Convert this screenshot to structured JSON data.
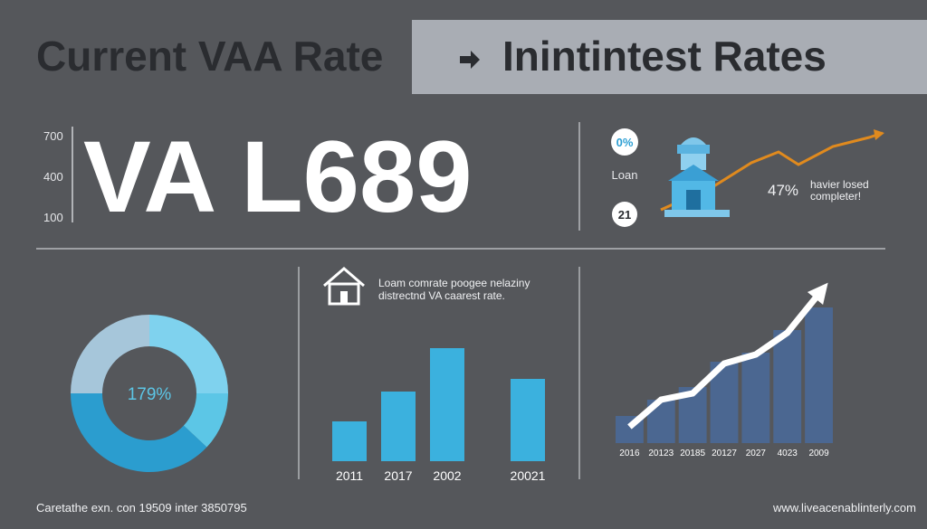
{
  "header": {
    "title_left": "Current VAA Rate",
    "title_right": "Inintintest Rates"
  },
  "hero": {
    "headline": "VA L689",
    "axis_labels": [
      "700",
      "400",
      "100"
    ]
  },
  "loan_panel": {
    "badge_top": "0%",
    "caption": "Loan",
    "badge_bottom": "21",
    "percent": "47%",
    "note_line1": "havier losed",
    "note_line2": "completer!"
  },
  "bar_note": {
    "line1": "Loam comrate poogee nelaziny",
    "line2": "distrectnd VA caarest rate."
  },
  "footer": {
    "left": "Caretathe exn. con 19509 inter 3850795",
    "right": "www.liveacenablinterly.com"
  },
  "chart_data": [
    {
      "type": "donut",
      "center_label": "179%",
      "values": [
        25,
        12,
        38,
        25
      ],
      "colors": [
        "#7fd2ee",
        "#5cc6e6",
        "#2b9dcf",
        "#a6c6da"
      ]
    },
    {
      "type": "bar",
      "categories": [
        "2011",
        "2017",
        "2002",
        "20021"
      ],
      "values": [
        44,
        77,
        125,
        91
      ],
      "color": "#3bb1de"
    },
    {
      "type": "bar_line",
      "categories": [
        "2016",
        "20123",
        "20185",
        "20127",
        "2027",
        "4023",
        "2009"
      ],
      "values": [
        30,
        48,
        62,
        90,
        100,
        125,
        150
      ],
      "color": "#4b6791",
      "trend": [
        18,
        48,
        55,
        88,
        98,
        122,
        165
      ],
      "trend_color": "#ffffff"
    }
  ]
}
